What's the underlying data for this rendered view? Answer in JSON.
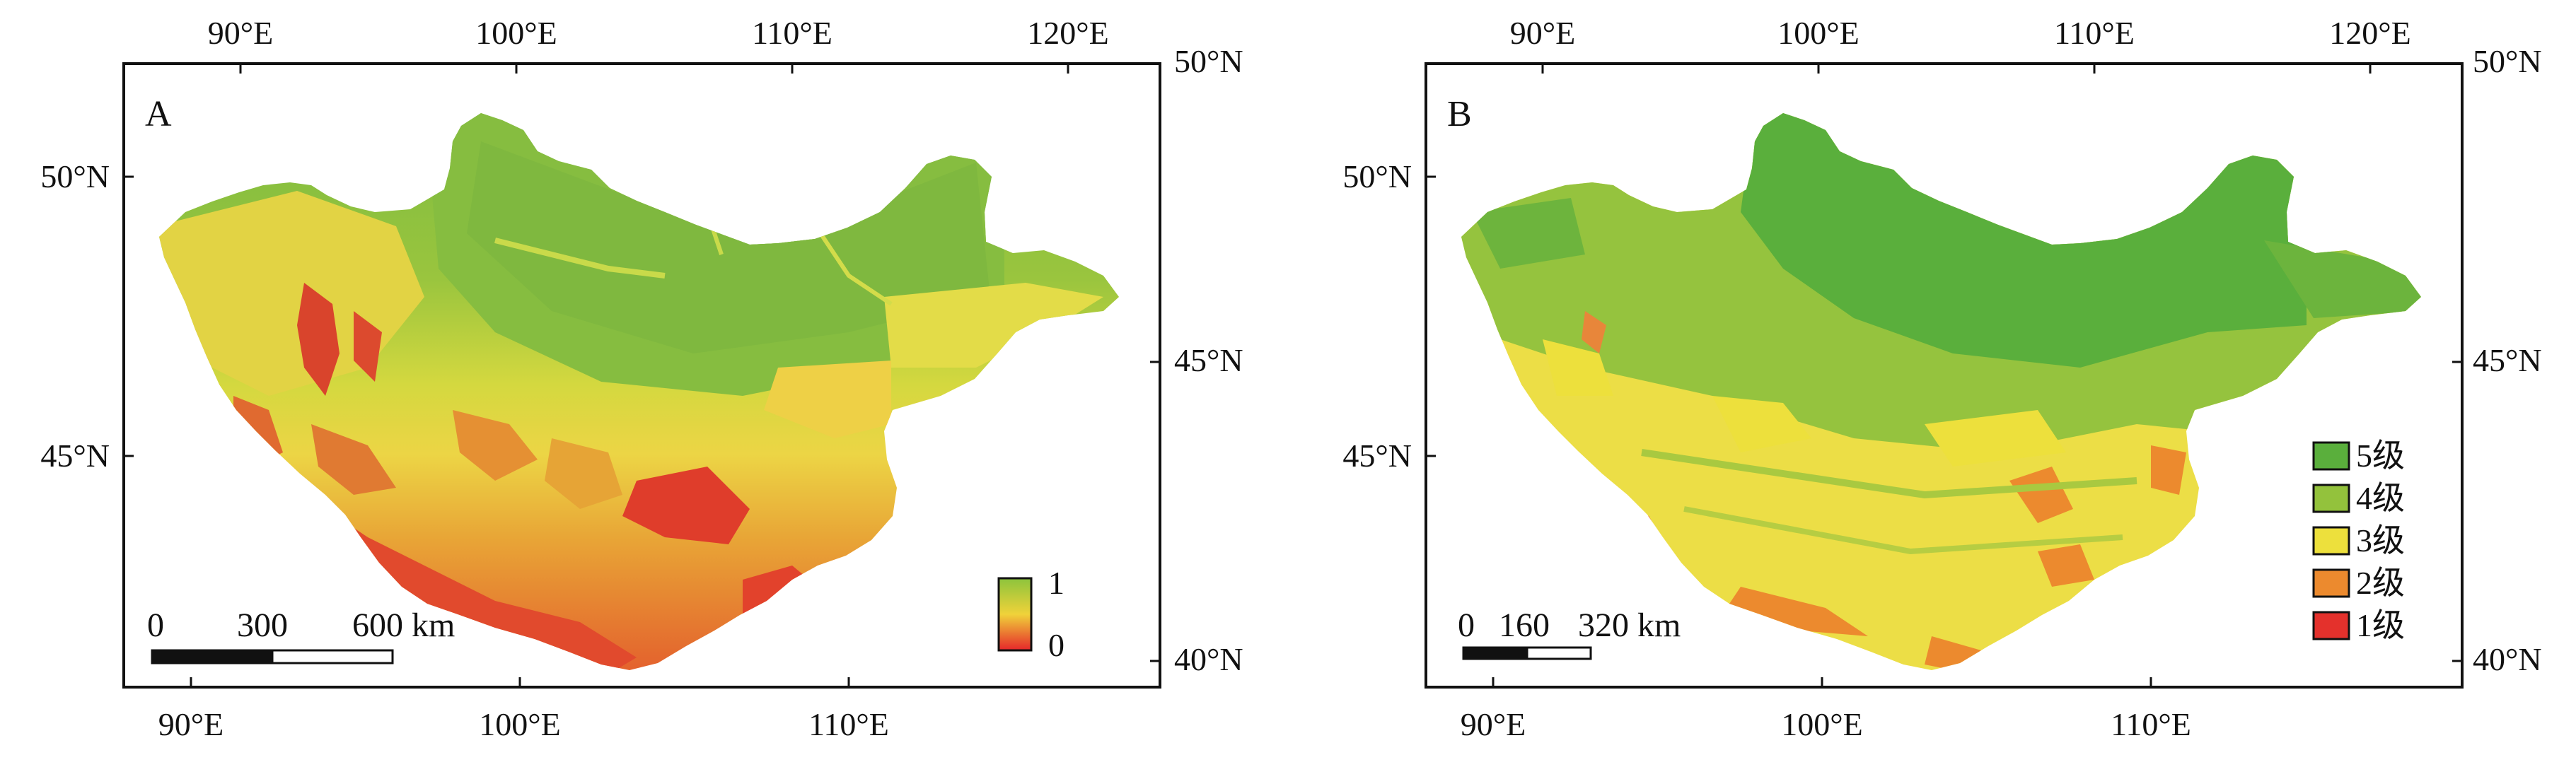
{
  "panels": [
    {
      "letter": "A",
      "top_lon_labels": [
        "90°E",
        "100°E",
        "110°E",
        "120°E"
      ],
      "bottom_lon_labels": [
        "90°E",
        "100°E",
        "110°E"
      ],
      "left_lat_labels": [
        "50°N",
        "45°N"
      ],
      "right_lat_labels": [
        "50°N",
        "45°N",
        "40°N"
      ],
      "scalebar": {
        "ticks": [
          "0",
          "300",
          "600 km"
        ]
      },
      "legend": {
        "type": "gradient",
        "max_label": "1",
        "min_label": "0",
        "colors": [
          "#e6262a",
          "#f0d23a",
          "#8cc43c"
        ]
      }
    },
    {
      "letter": "B",
      "top_lon_labels": [
        "90°E",
        "100°E",
        "110°E",
        "120°E"
      ],
      "bottom_lon_labels": [
        "90°E",
        "100°E",
        "110°E"
      ],
      "left_lat_labels": [
        "50°N",
        "45°N"
      ],
      "right_lat_labels": [
        "50°N",
        "45°N",
        "40°N"
      ],
      "scalebar": {
        "ticks": [
          "0",
          "160",
          "320 km"
        ]
      },
      "legend": {
        "type": "classes",
        "items": [
          {
            "label": "5级",
            "color": "#5aaf3c"
          },
          {
            "label": "4级",
            "color": "#93c23c"
          },
          {
            "label": "3级",
            "color": "#ede03c"
          },
          {
            "label": "2级",
            "color": "#ec8a2e"
          },
          {
            "label": "1级",
            "color": "#e4312c"
          }
        ]
      }
    }
  ],
  "map_colors": {
    "green_dark": "#6eb33f",
    "green": "#95c33e",
    "yellow_green": "#c8d63e",
    "yellow": "#ecde46",
    "orange": "#e9a033",
    "red": "#e23a2c"
  }
}
